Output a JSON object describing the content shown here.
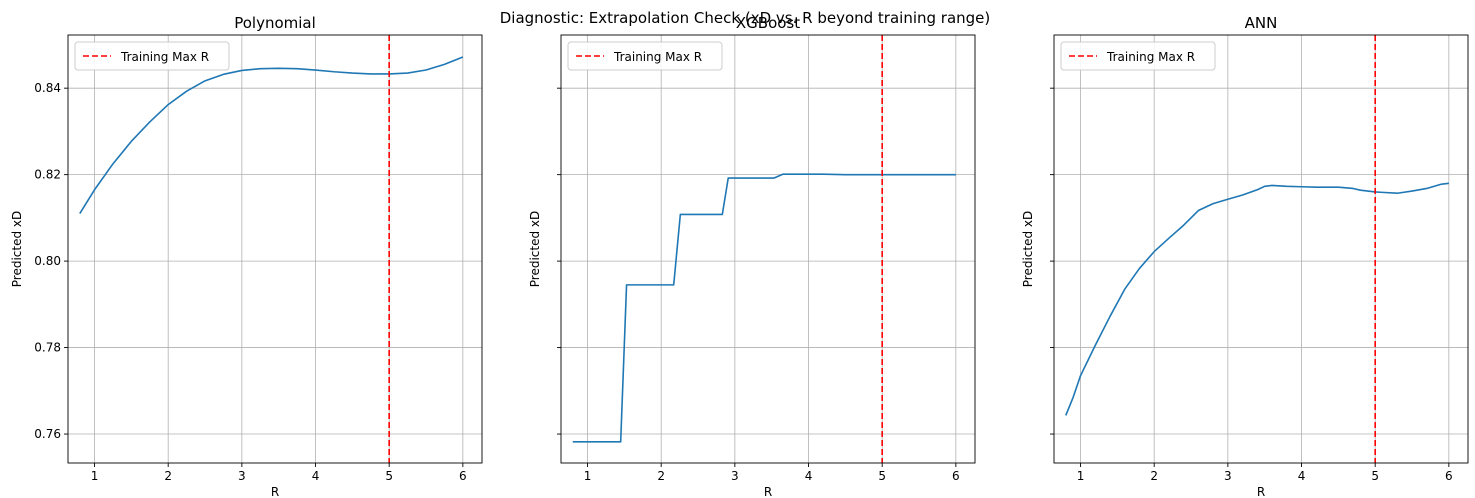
{
  "suptitle": "Diagnostic: Extrapolation Check (xD vs. R beyond training range)",
  "colors": {
    "line": "#1f77b4",
    "vline": "#ff0000",
    "grid": "#b0b0b0"
  },
  "chart_data": [
    {
      "type": "line",
      "title": "Polynomial",
      "xlabel": "R",
      "ylabel": "Predicted xD",
      "xlim": [
        0.64,
        6.26
      ],
      "ylim": [
        0.7533,
        0.8523
      ],
      "xticks": [
        1,
        2,
        3,
        4,
        5,
        6
      ],
      "xtick_labels": [
        "1",
        "2",
        "3",
        "4",
        "5",
        "6"
      ],
      "yticks": [
        0.76,
        0.78,
        0.8,
        0.82,
        0.84
      ],
      "ytick_labels": [
        "0.76",
        "0.78",
        "0.80",
        "0.82",
        "0.84"
      ],
      "show_ytick_labels": true,
      "grid": true,
      "legend": {
        "label": "Training Max R",
        "placement": "top-left"
      },
      "vline": {
        "x": 5,
        "label": "Training Max R",
        "style": "dashed"
      },
      "series": [
        {
          "name": "Predicted xD",
          "x": [
            0.8,
            1.0,
            1.25,
            1.5,
            1.75,
            2.0,
            2.25,
            2.5,
            2.75,
            3.0,
            3.25,
            3.5,
            3.75,
            4.0,
            4.25,
            4.5,
            4.75,
            5.0,
            5.25,
            5.5,
            5.75,
            6.0
          ],
          "y": [
            0.811,
            0.8165,
            0.8225,
            0.8277,
            0.8322,
            0.8362,
            0.8393,
            0.8417,
            0.8432,
            0.8441,
            0.8445,
            0.8446,
            0.8445,
            0.8442,
            0.8438,
            0.8435,
            0.8433,
            0.8433,
            0.8435,
            0.8442,
            0.8455,
            0.8472
          ]
        }
      ]
    },
    {
      "type": "line",
      "title": "XGBoost",
      "xlabel": "R",
      "ylabel": "Predicted xD",
      "xlim": [
        0.64,
        6.26
      ],
      "ylim": [
        0.7533,
        0.8523
      ],
      "xticks": [
        1,
        2,
        3,
        4,
        5,
        6
      ],
      "xtick_labels": [
        "1",
        "2",
        "3",
        "4",
        "5",
        "6"
      ],
      "yticks": [
        0.76,
        0.78,
        0.8,
        0.82,
        0.84
      ],
      "ytick_labels": [
        "0.76",
        "0.78",
        "0.80",
        "0.82",
        "0.84"
      ],
      "show_ytick_labels": false,
      "grid": true,
      "legend": {
        "label": "Training Max R",
        "placement": "top-left"
      },
      "vline": {
        "x": 5,
        "label": "Training Max R",
        "style": "dashed"
      },
      "series": [
        {
          "name": "Predicted xD",
          "x": [
            0.8,
            1.45,
            1.53,
            2.17,
            2.26,
            2.83,
            2.91,
            3.53,
            3.65,
            4.2,
            4.5,
            6.0
          ],
          "y": [
            0.7582,
            0.7582,
            0.7945,
            0.7945,
            0.8108,
            0.8108,
            0.8192,
            0.8192,
            0.8201,
            0.8201,
            0.82,
            0.82
          ]
        }
      ]
    },
    {
      "type": "line",
      "title": "ANN",
      "xlabel": "R",
      "ylabel": "Predicted xD",
      "xlim": [
        0.64,
        6.26
      ],
      "ylim": [
        0.7533,
        0.8523
      ],
      "xticks": [
        1,
        2,
        3,
        4,
        5,
        6
      ],
      "xtick_labels": [
        "1",
        "2",
        "3",
        "4",
        "5",
        "6"
      ],
      "yticks": [
        0.76,
        0.78,
        0.8,
        0.82,
        0.84
      ],
      "ytick_labels": [
        "0.76",
        "0.78",
        "0.80",
        "0.82",
        "0.84"
      ],
      "show_ytick_labels": false,
      "grid": true,
      "legend": {
        "label": "Training Max R",
        "placement": "top-left"
      },
      "vline": {
        "x": 5,
        "label": "Training Max R",
        "style": "dashed"
      },
      "series": [
        {
          "name": "Predicted xD",
          "x": [
            0.8,
            0.9,
            1.0,
            1.2,
            1.4,
            1.6,
            1.8,
            2.0,
            2.2,
            2.4,
            2.6,
            2.8,
            3.0,
            3.2,
            3.4,
            3.5,
            3.6,
            3.8,
            4.0,
            4.2,
            4.5,
            4.7,
            4.8,
            5.0,
            5.1,
            5.3,
            5.5,
            5.7,
            5.9,
            6.0
          ],
          "y": [
            0.7643,
            0.7685,
            0.7735,
            0.7805,
            0.7872,
            0.7935,
            0.7983,
            0.8022,
            0.8053,
            0.8083,
            0.8117,
            0.8133,
            0.8143,
            0.8153,
            0.8165,
            0.8173,
            0.8175,
            0.8173,
            0.8172,
            0.8171,
            0.8171,
            0.8168,
            0.8164,
            0.816,
            0.8159,
            0.8157,
            0.8162,
            0.8168,
            0.8178,
            0.818
          ]
        }
      ]
    }
  ]
}
